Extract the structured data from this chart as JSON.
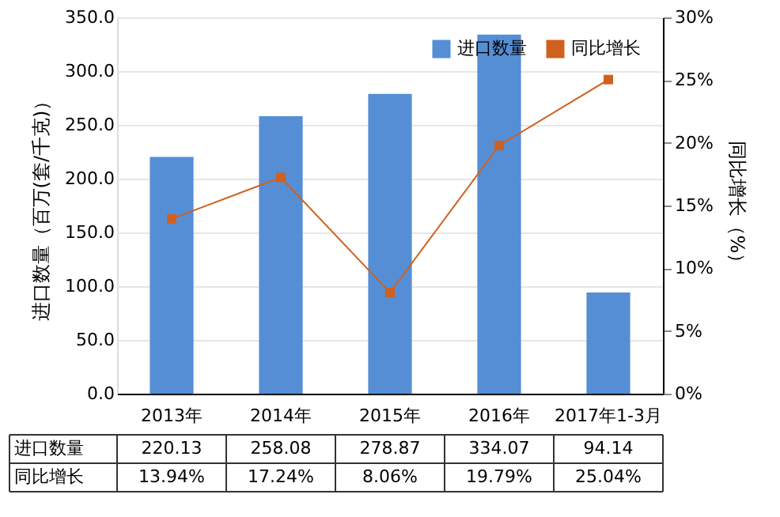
{
  "chart_data": {
    "type": "bar",
    "categories": [
      "2013年",
      "2014年",
      "2015年",
      "2016年",
      "2017年1-3月"
    ],
    "ylabel": "进口数量（百万(套/千克)）",
    "y2label": "同比增长（%）",
    "series": [
      {
        "name": "进口数量",
        "color": "#558ed5",
        "values": [
          220.13,
          258.08,
          278.87,
          334.07,
          94.14
        ],
        "value_labels": [
          "220.13",
          "258.08",
          "278.87",
          "334.07",
          "94.14"
        ]
      },
      {
        "name": "同比增长",
        "type": "line",
        "axis": "y2",
        "color": "#d0601e",
        "marker": "square",
        "values": [
          13.94,
          17.24,
          8.06,
          19.79,
          25.04
        ],
        "value_labels": [
          "13.94%",
          "17.24%",
          "8.06%",
          "19.79%",
          "25.04%"
        ]
      }
    ],
    "ylim": [
      0,
      350
    ],
    "yticks": [
      {
        "value": 0,
        "label": "0.0"
      },
      {
        "value": 50,
        "label": "50.0"
      },
      {
        "value": 100,
        "label": "100.0"
      },
      {
        "value": 150,
        "label": "150.0"
      },
      {
        "value": 200,
        "label": "200.0"
      },
      {
        "value": 250,
        "label": "250.0"
      },
      {
        "value": 300,
        "label": "300.0"
      },
      {
        "value": 350,
        "label": "350.0"
      }
    ],
    "y2lim": [
      0,
      30
    ],
    "y2ticks": [
      {
        "value": 0,
        "label": "0%"
      },
      {
        "value": 5,
        "label": "5%"
      },
      {
        "value": 10,
        "label": "10%"
      },
      {
        "value": 15,
        "label": "15%"
      },
      {
        "value": 20,
        "label": "20%"
      },
      {
        "value": 25,
        "label": "25%"
      },
      {
        "value": 30,
        "label": "30%"
      }
    ],
    "grid": "y",
    "legend": "top right"
  }
}
